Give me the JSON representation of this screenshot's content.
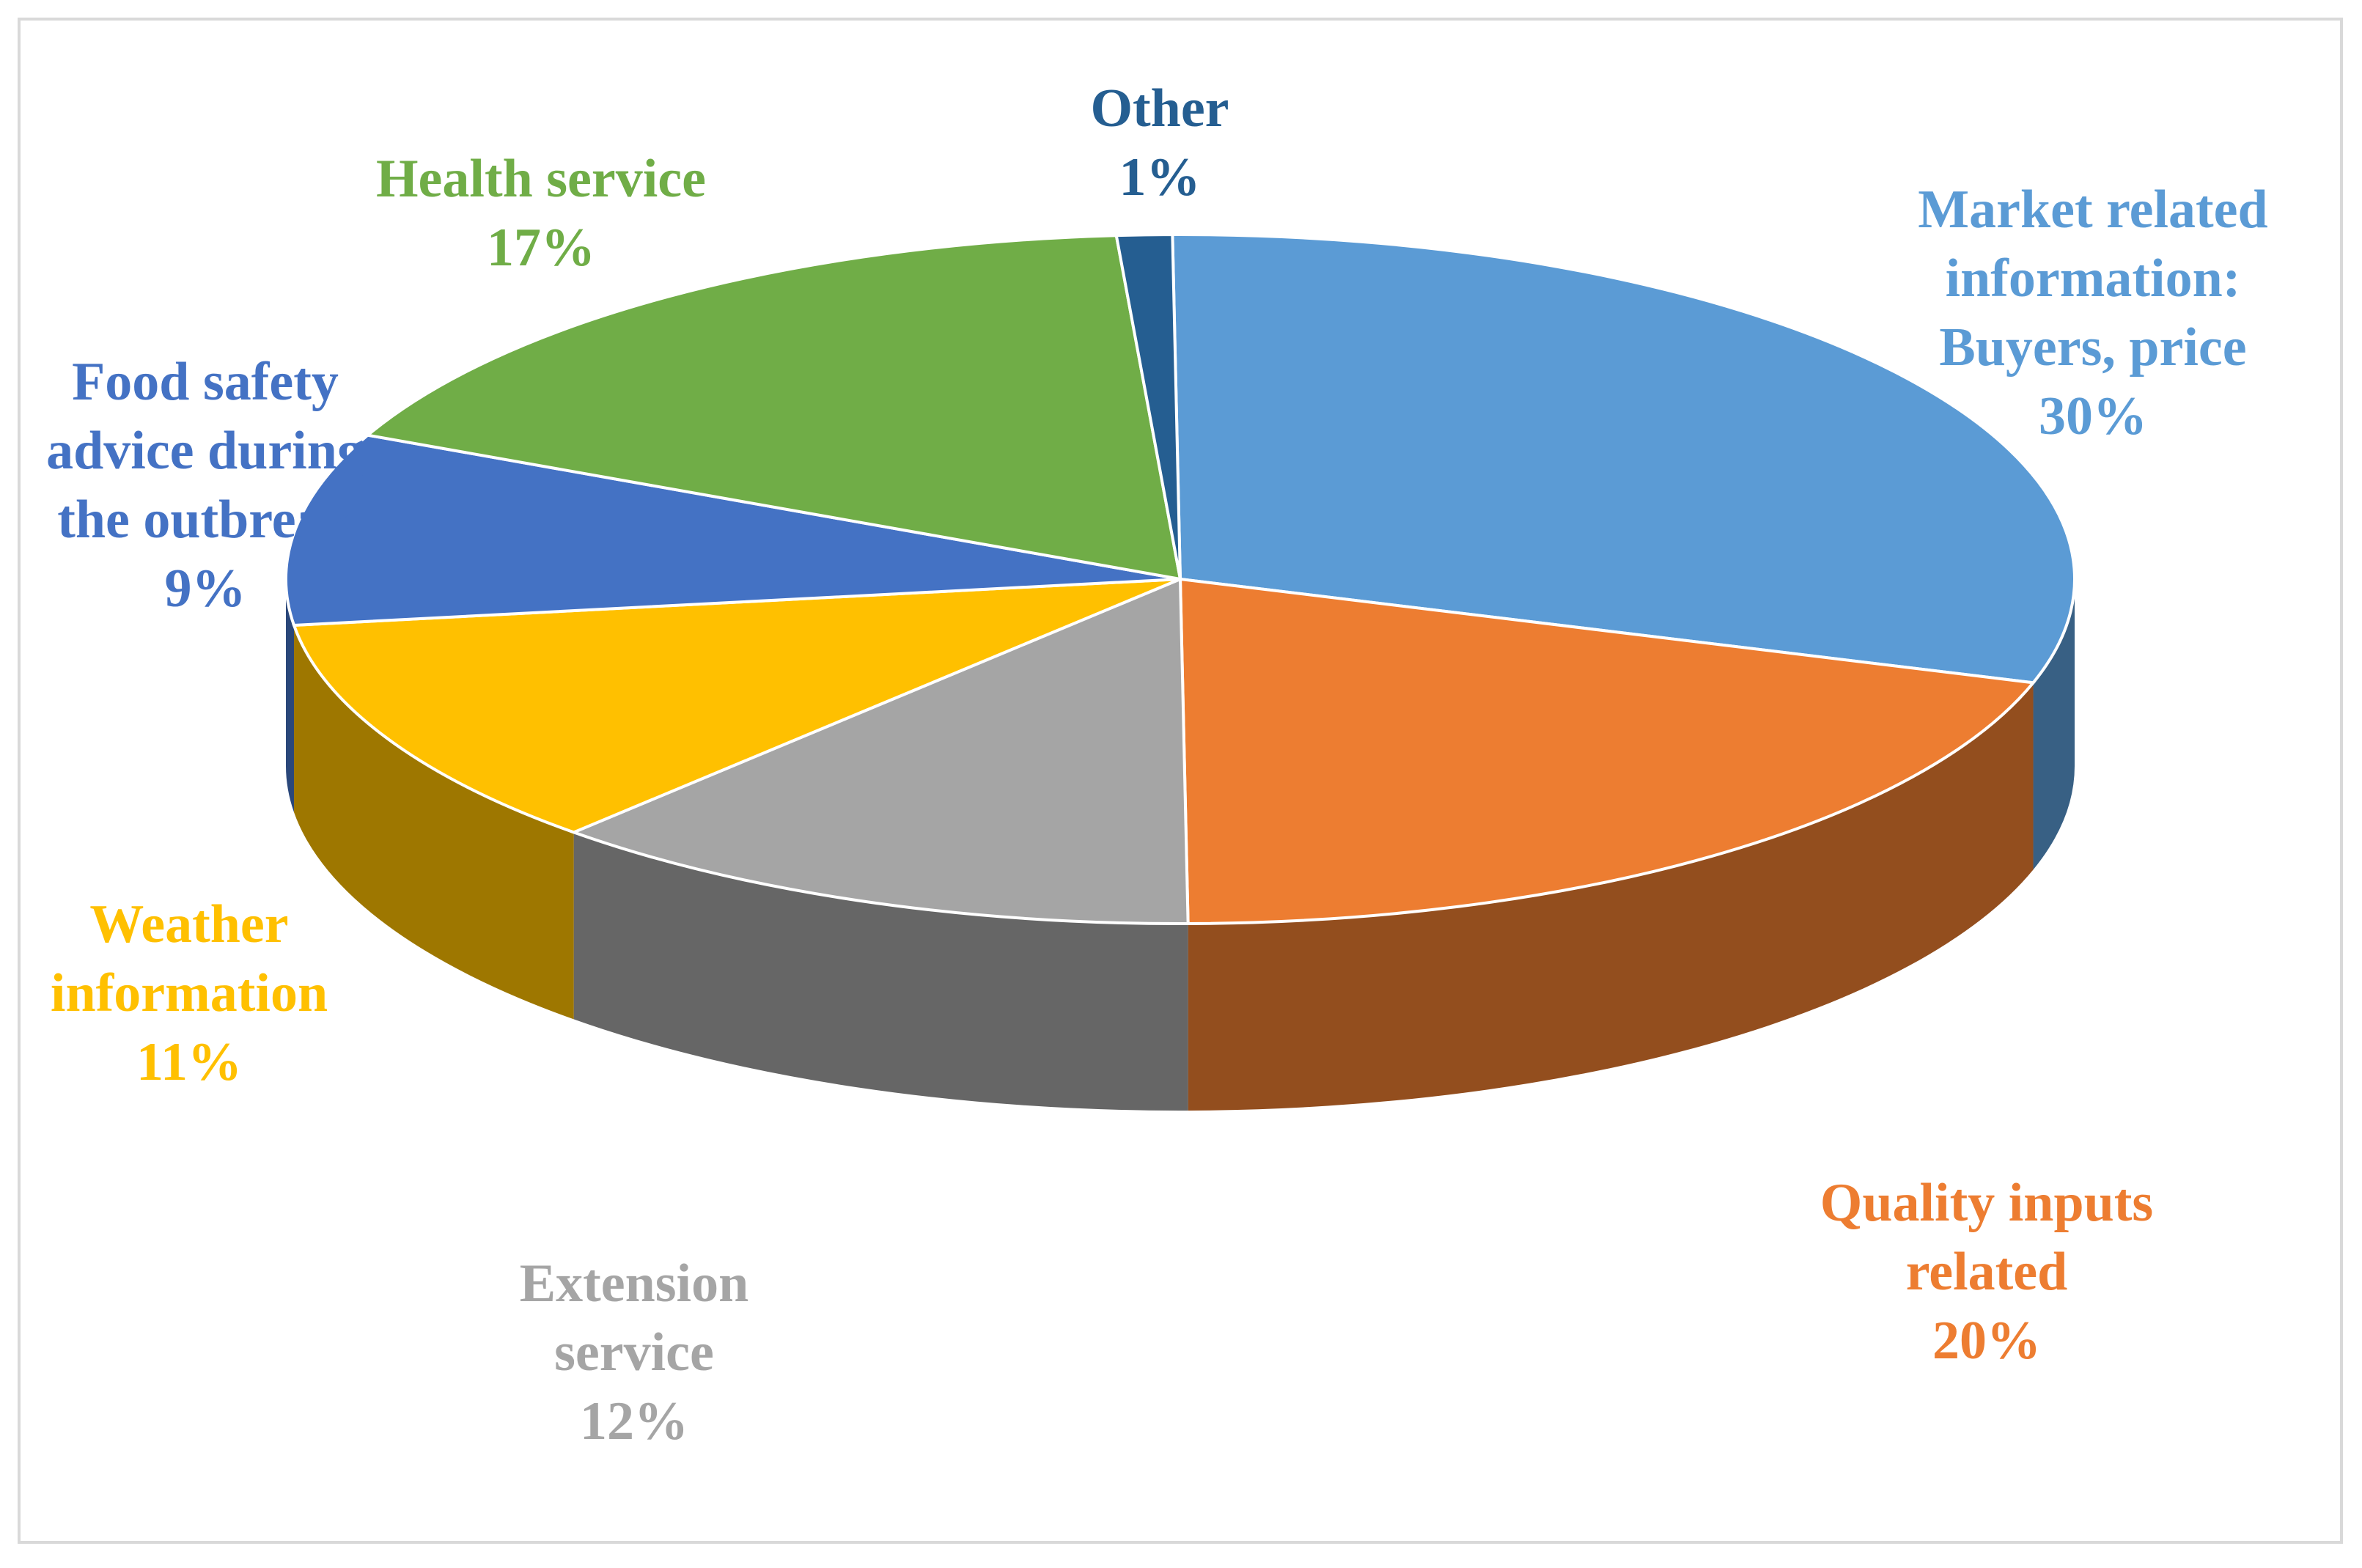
{
  "chart_data": {
    "type": "pie",
    "title": "",
    "style": "3d-exploded-tilted",
    "slices": [
      {
        "label_lines": [
          "Market related",
          "information:",
          "Buyers, price"
        ],
        "percent_label": "30%",
        "value": 30,
        "color": "#5b9bd5"
      },
      {
        "label_lines": [
          "Quality inputs",
          "related"
        ],
        "percent_label": "20%",
        "value": 20,
        "color": "#ed7d31"
      },
      {
        "label_lines": [
          "Extension",
          "service"
        ],
        "percent_label": "12%",
        "value": 12,
        "color": "#a5a5a5"
      },
      {
        "label_lines": [
          "Weather",
          "information"
        ],
        "percent_label": "11%",
        "value": 11,
        "color": "#ffc000"
      },
      {
        "label_lines": [
          "Food safety",
          "advice during",
          "the outbreak"
        ],
        "percent_label": "9%",
        "value": 9,
        "color": "#4472c4"
      },
      {
        "label_lines": [
          "Health service"
        ],
        "percent_label": "17%",
        "value": 17,
        "color": "#70ad47"
      },
      {
        "label_lines": [
          "Other"
        ],
        "percent_label": "1%",
        "value": 1,
        "color": "#255e91"
      }
    ]
  }
}
